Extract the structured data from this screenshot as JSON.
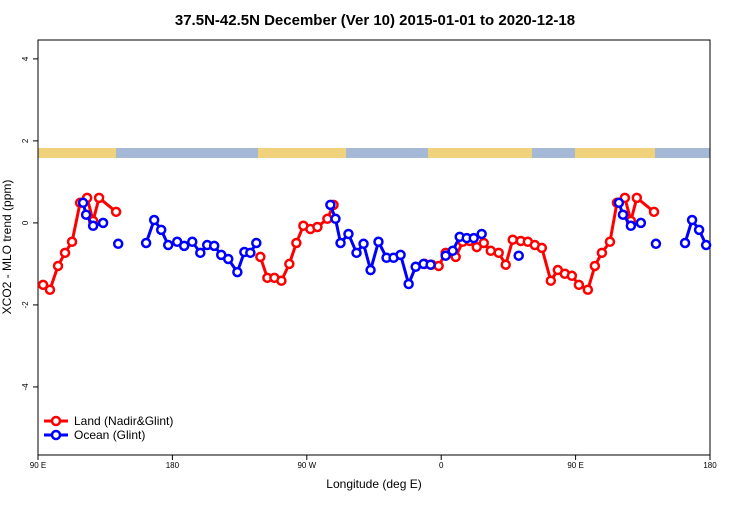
{
  "chart_data": {
    "type": "line",
    "title": "37.5N-42.5N December (Ver 10)   2015-01-01 to 2020-12-18",
    "x_label": "Longitude (deg E)",
    "y_label": "XCO2 - MLO trend (ppm)",
    "xlim": [
      90,
      540
    ],
    "ylim": [
      -5.66,
      4.46
    ],
    "xticks": [
      {
        "value": 90,
        "label": "90 E"
      },
      180,
      {
        "value": 270,
        "label": "90 W"
      },
      {
        "value": 360,
        "label": "0"
      },
      {
        "value": 450,
        "label": "90 E"
      },
      {
        "value": 540,
        "label": "180"
      }
    ],
    "yticks": [
      4,
      2,
      0,
      -2,
      -4
    ],
    "legend": "bottom-left",
    "series": [
      {
        "name": "Land (Nadir&Glint)",
        "color": "#ff0000",
        "x": [
          93.4,
          98,
          103.4,
          108.1,
          112.8,
          118.2,
          122.9,
          126.9,
          130.9,
          142.3,
          null,
          238.9,
          243.6,
          248.3,
          253,
          258.3,
          263,
          267.7,
          272.4,
          277.1,
          283.8,
          287.9,
          null,
          348.9,
          353.6,
          358.3,
          363,
          369.7,
          374.4,
          379.1,
          383.8,
          388.5,
          393.2,
          398.5,
          403.2,
          407.9,
          413.3,
          418,
          422.7,
          427.4,
          433.4,
          438.1,
          442.8,
          447.5,
          452.2,
          458.2,
          462.9,
          467.6,
          473,
          477.7,
          483,
          487,
          491,
          502.5
        ],
        "values": [
          -1.51,
          -1.63,
          -1.05,
          -0.73,
          -0.46,
          0.49,
          0.61,
          0.05,
          0.61,
          0.27,
          null,
          -0.83,
          -1.34,
          -1.34,
          -1.41,
          -1.0,
          -0.49,
          -0.07,
          -0.15,
          -0.1,
          0.1,
          0.44,
          null,
          -1.0,
          -1.02,
          -1.05,
          -0.73,
          -0.83,
          -0.46,
          -0.44,
          -0.59,
          -0.49,
          -0.68,
          -0.73,
          -1.02,
          -0.41,
          -0.44,
          -0.46,
          -0.54,
          -0.61,
          -1.41,
          -1.15,
          -1.24,
          -1.29,
          -1.51,
          -1.63,
          -1.05,
          -0.73,
          -0.46,
          0.49,
          0.61,
          0.05,
          0.61,
          0.27
        ]
      },
      {
        "name": "Ocean (Glint)",
        "color": "#0000ff",
        "x": [
          120.2,
          122.2,
          126.9,
          133.6,
          null,
          143.7,
          null,
          162.4,
          167.8,
          172.5,
          177.2,
          183.2,
          187.9,
          193.3,
          198.7,
          203.3,
          208,
          212.7,
          217.4,
          223.5,
          228.2,
          232.2,
          236.2,
          null,
          285.8,
          289.2,
          292.6,
          297.9,
          303.3,
          308,
          312.7,
          318,
          323.4,
          328.1,
          332.8,
          338.2,
          342.9,
          348.2,
          352.9,
          null,
          363,
          367.7,
          372.4,
          377.1,
          381.8,
          387.1,
          null,
          411.9,
          null,
          479,
          481.7,
          487,
          493.7,
          null,
          503.8,
          null,
          523.3,
          528,
          532.7,
          537.4
        ],
        "values": [
          0.49,
          0.2,
          -0.07,
          0,
          null,
          -0.51,
          null,
          -0.49,
          0.07,
          -0.17,
          -0.54,
          -0.46,
          -0.56,
          -0.46,
          -0.73,
          -0.54,
          -0.56,
          -0.78,
          -0.88,
          -1.2,
          -0.71,
          -0.73,
          -0.49,
          null,
          0.44,
          0.1,
          -0.49,
          -0.27,
          -0.73,
          -0.51,
          -1.15,
          -0.46,
          -0.85,
          -0.85,
          -0.78,
          -1.49,
          -1.07,
          -1.0,
          -1.02,
          null,
          -0.8,
          -0.68,
          -0.34,
          -0.37,
          -0.37,
          -0.27,
          null,
          -0.8,
          null,
          0.49,
          0.2,
          -0.07,
          0,
          null,
          -0.51,
          null,
          -0.49,
          0.07,
          -0.17,
          -0.54
        ]
      }
    ]
  }
}
